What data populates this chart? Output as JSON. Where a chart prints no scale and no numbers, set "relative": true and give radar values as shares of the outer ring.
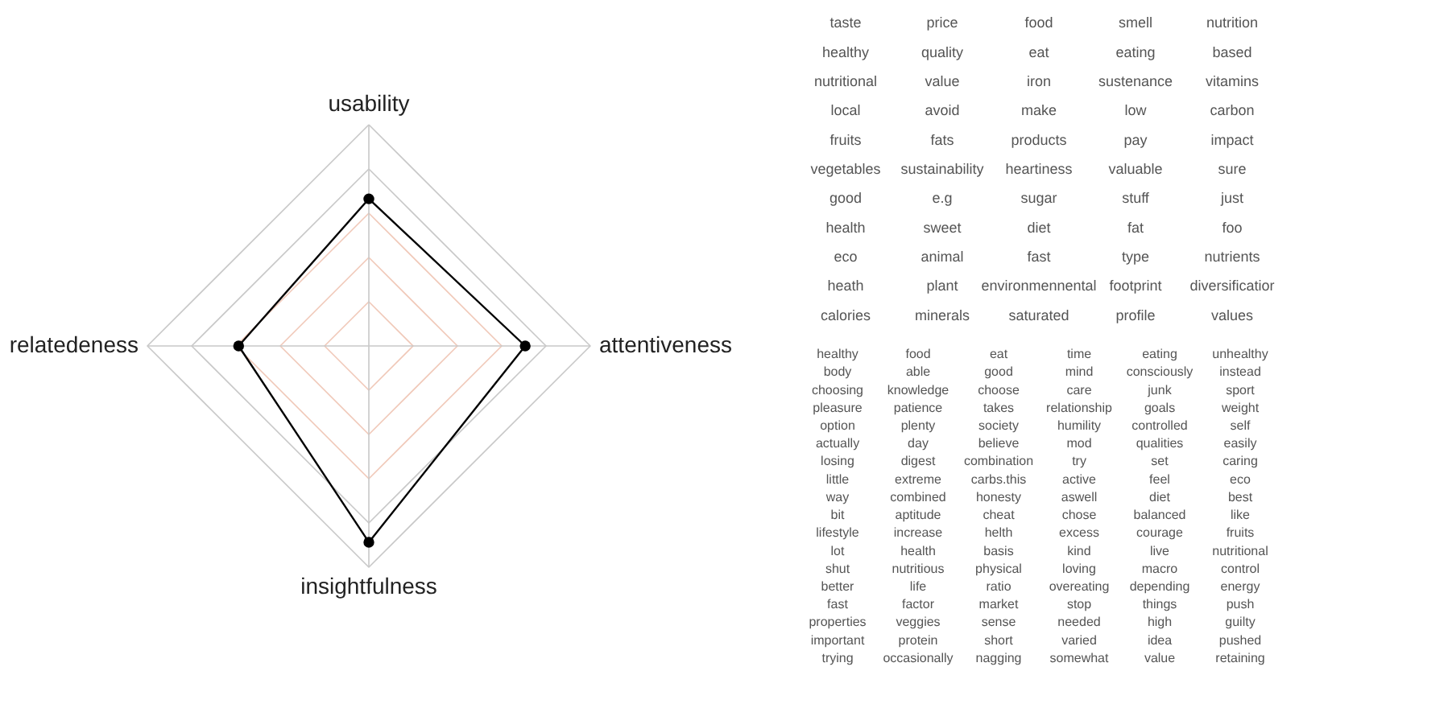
{
  "chart_data": [
    {
      "type": "radar",
      "categories": [
        "usability",
        "attentiveness",
        "insightfulness",
        "relatedeness"
      ],
      "relative": true,
      "grid": true,
      "marker": "circle",
      "line_style": "solid",
      "series": [
        {
          "color": "#000000",
          "values": [
            0.665,
            0.706,
            0.887,
            0.588
          ]
        }
      ]
    },
    {
      "type": "other",
      "annotations": [
        "taste",
        "price",
        "food",
        "smell",
        "nutrition",
        "healthy",
        "quality",
        "eat",
        "eating",
        "based",
        "nutritional",
        "value",
        "iron",
        "sustenance",
        "vitamins",
        "local",
        "avoid",
        "make",
        "low",
        "carbon",
        "fruits",
        "fats",
        "products",
        "pay",
        "impact",
        "vegetables",
        "sustainability",
        "heartiness",
        "valuable",
        "sure",
        "good",
        "e.g",
        "sugar",
        "stuff",
        "just",
        "health",
        "sweet",
        "diet",
        "fat",
        "foo",
        "eco",
        "animal",
        "fast",
        "type",
        "nutrients",
        "heath",
        "plant",
        "environmennental",
        "footprint",
        "diversificatior",
        "calories",
        "minerals",
        "saturated",
        "profile",
        "values"
      ]
    },
    {
      "type": "other",
      "annotations": [
        "healthy",
        "food",
        "eat",
        "time",
        "eating",
        "unhealthy",
        "body",
        "able",
        "good",
        "mind",
        "consciously",
        "instead",
        "choosing",
        "knowledge",
        "choose",
        "care",
        "junk",
        "sport",
        "pleasure",
        "patience",
        "takes",
        "relationship",
        "goals",
        "weight",
        "option",
        "plenty",
        "society",
        "humility",
        "controlled",
        "self",
        "actually",
        "day",
        "believe",
        "mod",
        "qualities",
        "easily",
        "losing",
        "digest",
        "combination",
        "try",
        "set",
        "caring",
        "little",
        "extreme",
        "carbs.this",
        "active",
        "feel",
        "eco",
        "way",
        "combined",
        "honesty",
        "aswell",
        "diet",
        "best",
        "bit",
        "aptitude",
        "cheat",
        "chose",
        "balanced",
        "like",
        "lifestyle",
        "increase",
        "helth",
        "excess",
        "courage",
        "fruits",
        "lot",
        "health",
        "basis",
        "kind",
        "live",
        "nutritional",
        "shut",
        "nutritious",
        "physical",
        "loving",
        "macro",
        "control",
        "better",
        "life",
        "ratio",
        "overeating",
        "depending",
        "energy",
        "fast",
        "factor",
        "market",
        "stop",
        "things",
        "push",
        "properties",
        "veggies",
        "sense",
        "needed",
        "high",
        "guilty",
        "important",
        "protein",
        "short",
        "varied",
        "idea",
        "pushed",
        "trying",
        "occasionally",
        "nagging",
        "somewhat",
        "value",
        "retaining"
      ]
    }
  ]
}
